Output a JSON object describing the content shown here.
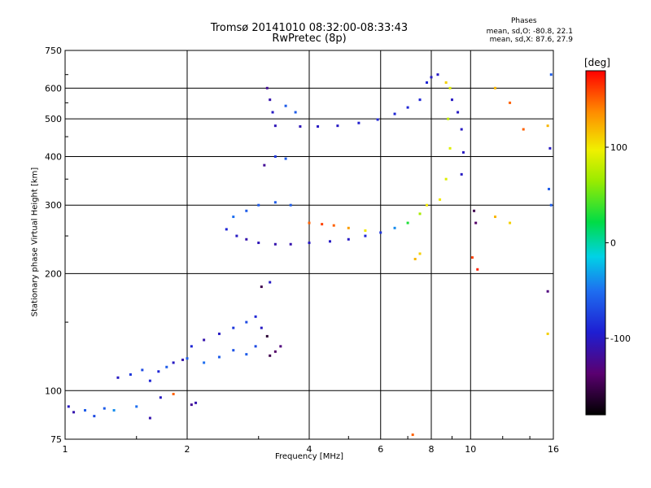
{
  "header": {
    "title_line1": "Tromsø 20141010 08:32:00-08:33:43",
    "title_line2": "RwPretec (8p)"
  },
  "stats": {
    "title": "Phases",
    "line_o": "mean, sd,O: -80.8, 22.1",
    "line_x": "mean, sd,X:  87.6, 27.9"
  },
  "colorbar": {
    "unit_label": "[deg]",
    "range": [
      -180,
      180
    ],
    "ticks": [
      {
        "value": 100,
        "label": "100"
      },
      {
        "value": 0,
        "label": "0"
      },
      {
        "value": -100,
        "label": "-100"
      }
    ]
  },
  "chart_data": {
    "type": "scatter",
    "title": "Tromsø 20141010 08:32:00-08:33:43",
    "subtitle": "RwPretec (8p)",
    "xlabel": "Frequency [MHz]",
    "ylabel": "Stationary phase Virtual Height [km]",
    "x_scale": "log",
    "y_scale": "log",
    "xlim": [
      1,
      16
    ],
    "ylim": [
      75,
      750
    ],
    "grid": true,
    "x_ticks": [
      {
        "value": 1,
        "label": "1"
      },
      {
        "value": 2,
        "label": "2"
      },
      {
        "value": 4,
        "label": "4"
      },
      {
        "value": 6,
        "label": "6"
      },
      {
        "value": 8,
        "label": "8"
      },
      {
        "value": 10,
        "label": "10"
      },
      {
        "value": 16,
        "label": "16"
      }
    ],
    "y_ticks": [
      {
        "value": 75,
        "label": "75"
      },
      {
        "value": 100,
        "label": "100"
      },
      {
        "value": 200,
        "label": "200"
      },
      {
        "value": 300,
        "label": "300"
      },
      {
        "value": 400,
        "label": "400"
      },
      {
        "value": 500,
        "label": "500"
      },
      {
        "value": 600,
        "label": "600"
      },
      {
        "value": 750,
        "label": "750"
      }
    ],
    "color_variable": "phase [deg]",
    "points": [
      [
        1.02,
        91,
        -100
      ],
      [
        1.05,
        88,
        -110
      ],
      [
        1.12,
        89,
        -60
      ],
      [
        1.18,
        86,
        -70
      ],
      [
        1.25,
        90,
        -60
      ],
      [
        1.32,
        89,
        -40
      ],
      [
        1.5,
        91,
        -50
      ],
      [
        1.62,
        85,
        -110
      ],
      [
        1.35,
        108,
        -100
      ],
      [
        1.45,
        110,
        -80
      ],
      [
        1.55,
        113,
        -70
      ],
      [
        1.62,
        106,
        -90
      ],
      [
        1.7,
        112,
        -90
      ],
      [
        1.78,
        115,
        -60
      ],
      [
        1.85,
        118,
        -100
      ],
      [
        1.95,
        120,
        -110
      ],
      [
        1.72,
        96,
        -100
      ],
      [
        1.85,
        98,
        150
      ],
      [
        2.05,
        92,
        -120
      ],
      [
        2.1,
        93,
        -110
      ],
      [
        2.0,
        121,
        -60
      ],
      [
        2.2,
        118,
        -50
      ],
      [
        2.4,
        122,
        -60
      ],
      [
        2.6,
        127,
        -65
      ],
      [
        2.8,
        124,
        -60
      ],
      [
        2.95,
        130,
        -70
      ],
      [
        2.05,
        130,
        -90
      ],
      [
        2.2,
        135,
        -110
      ],
      [
        2.4,
        140,
        -100
      ],
      [
        2.6,
        145,
        -80
      ],
      [
        2.8,
        150,
        -70
      ],
      [
        2.95,
        155,
        -90
      ],
      [
        3.05,
        145,
        -100
      ],
      [
        3.2,
        123,
        -150
      ],
      [
        3.3,
        126,
        -140
      ],
      [
        3.4,
        130,
        -130
      ],
      [
        3.15,
        138,
        -160
      ],
      [
        3.2,
        190,
        -100
      ],
      [
        3.05,
        185,
        -150
      ],
      [
        2.5,
        260,
        -90
      ],
      [
        2.65,
        250,
        -100
      ],
      [
        2.8,
        245,
        -110
      ],
      [
        3.0,
        240,
        -105
      ],
      [
        3.3,
        238,
        -110
      ],
      [
        3.6,
        238,
        -110
      ],
      [
        4.0,
        240,
        -100
      ],
      [
        4.5,
        242,
        -100
      ],
      [
        5.0,
        245,
        -100
      ],
      [
        5.5,
        250,
        -90
      ],
      [
        6.0,
        255,
        -80
      ],
      [
        6.5,
        262,
        -40
      ],
      [
        7.0,
        270,
        30
      ],
      [
        7.5,
        285,
        70
      ],
      [
        7.8,
        300,
        100
      ],
      [
        2.6,
        280,
        -50
      ],
      [
        2.8,
        290,
        -60
      ],
      [
        3.0,
        300,
        -60
      ],
      [
        3.3,
        305,
        -60
      ],
      [
        3.6,
        300,
        -60
      ],
      [
        4.0,
        270,
        150
      ],
      [
        4.3,
        268,
        160
      ],
      [
        4.6,
        266,
        150
      ],
      [
        5.0,
        262,
        130
      ],
      [
        5.5,
        258,
        100
      ],
      [
        3.15,
        600,
        -120
      ],
      [
        3.2,
        560,
        -110
      ],
      [
        3.25,
        520,
        -100
      ],
      [
        3.5,
        540,
        -60
      ],
      [
        3.7,
        520,
        -60
      ],
      [
        3.3,
        480,
        -105
      ],
      [
        3.8,
        478,
        -105
      ],
      [
        4.2,
        478,
        -100
      ],
      [
        4.7,
        480,
        -100
      ],
      [
        5.3,
        488,
        -95
      ],
      [
        5.9,
        498,
        -90
      ],
      [
        6.5,
        515,
        -90
      ],
      [
        7.0,
        535,
        -90
      ],
      [
        7.5,
        560,
        -90
      ],
      [
        7.8,
        620,
        -90
      ],
      [
        8.0,
        640,
        -100
      ],
      [
        8.3,
        650,
        -100
      ],
      [
        8.7,
        620,
        110
      ],
      [
        8.9,
        600,
        90
      ],
      [
        8.8,
        500,
        80
      ],
      [
        8.9,
        420,
        90
      ],
      [
        8.7,
        350,
        90
      ],
      [
        8.4,
        310,
        100
      ],
      [
        9.0,
        560,
        -100
      ],
      [
        9.3,
        520,
        -100
      ],
      [
        9.5,
        470,
        -100
      ],
      [
        9.6,
        410,
        -100
      ],
      [
        9.5,
        360,
        -100
      ],
      [
        3.1,
        380,
        -120
      ],
      [
        3.3,
        400,
        -80
      ],
      [
        3.5,
        395,
        -60
      ],
      [
        11.5,
        600,
        120
      ],
      [
        12.5,
        550,
        150
      ],
      [
        13.5,
        470,
        150
      ],
      [
        15.5,
        480,
        120
      ],
      [
        15.7,
        420,
        -100
      ],
      [
        15.8,
        650,
        -60
      ],
      [
        15.6,
        330,
        -60
      ],
      [
        15.8,
        300,
        -60
      ],
      [
        10.2,
        290,
        -150
      ],
      [
        10.3,
        270,
        -140
      ],
      [
        10.1,
        220,
        160
      ],
      [
        10.4,
        205,
        170
      ],
      [
        11.5,
        280,
        120
      ],
      [
        12.5,
        270,
        110
      ],
      [
        15.5,
        180,
        -130
      ],
      [
        15.5,
        140,
        110
      ],
      [
        7.2,
        77,
        150
      ],
      [
        7.5,
        225,
        110
      ],
      [
        7.3,
        218,
        120
      ]
    ]
  }
}
